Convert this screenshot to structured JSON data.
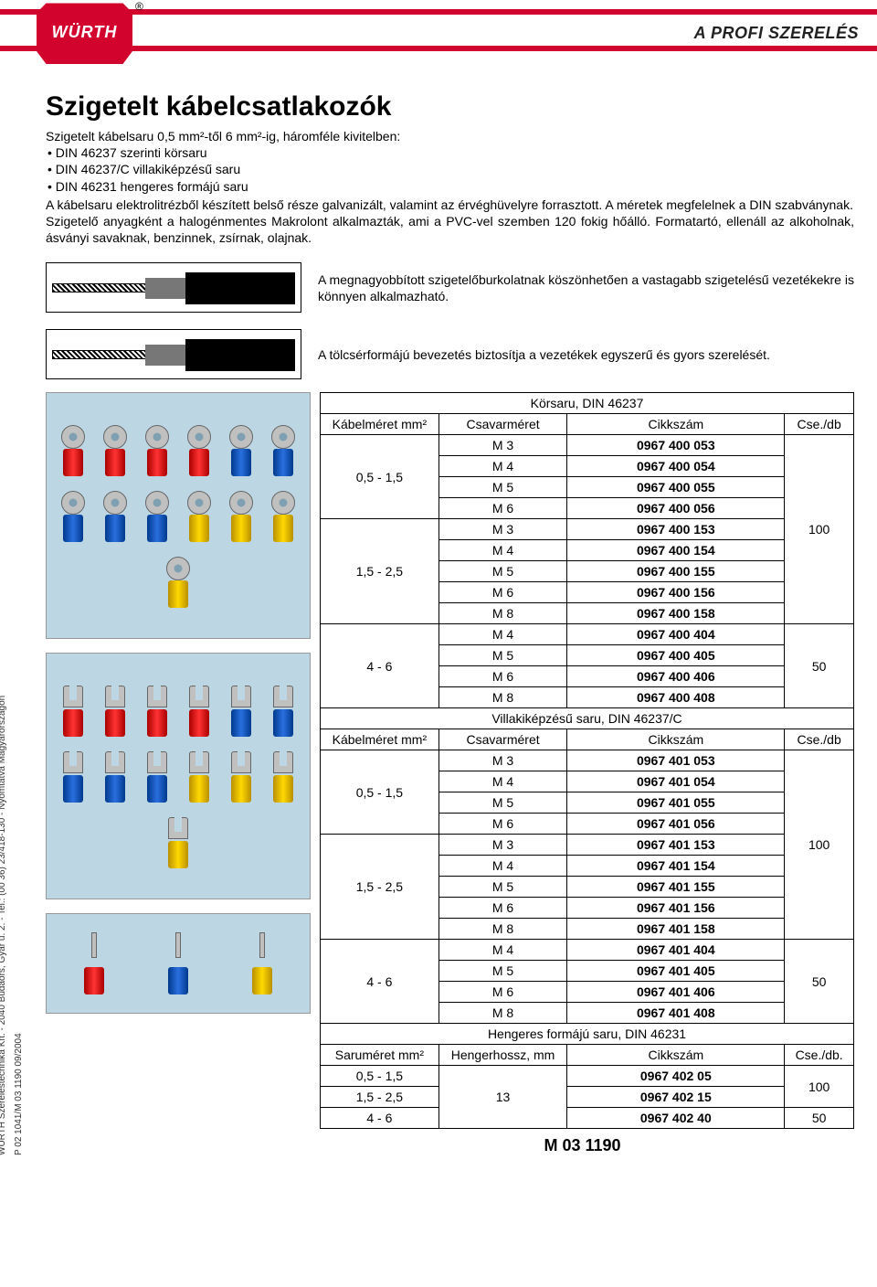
{
  "brand": {
    "logo_text": "WÜRTH",
    "registered": "®",
    "tagline": "A PROFI SZERELÉS"
  },
  "page": {
    "title": "Szigetelt kábelcsatlakozók",
    "subtitle": "Szigetelt kábelsaru 0,5 mm²-től 6 mm²-ig, háromféle kivitelben:",
    "bullets": [
      "DIN 46237 szerinti körsaru",
      "DIN 46237/C villakiképzésű saru",
      "DIN 46231 hengeres formájú saru"
    ],
    "para1": "A kábelsaru elektrolitrézből készített belső része galvanizált, valamint az érvéghüvelyre forrasztott. A méretek megfelelnek a DIN szabványnak.",
    "para2": "Szigetelő anyagként a halogénmentes Makrolont alkalmazták, ami a PVC-vel szemben 120 fokig hőálló. Formatartó, ellenáll az alkoholnak, ásványi savaknak, benzinnek, zsírnak, olajnak.",
    "diag_text1": "A megnagyobbított szigetelőburkolatnak köszönhetően a vastagabb szigetelésű vezetékekre is könnyen alkalmazható.",
    "diag_text2": "A tölcsérformájú bevezetés biztosítja a vezetékek egyszerű és gyors szerelését.",
    "footer_code": "M 03 1190"
  },
  "side": {
    "line1": "WÜRTH Szereléstechnika Kft. - 2040 Budaörs, Gyár u. 2. - Tel.: (00 36) 23/418-130 - Nyomtatva Magyarországon",
    "line2": "P 02 1041/M 03 1190       09/2004"
  },
  "columns": {
    "cable": "Kábelméret mm²",
    "screw": "Csavarméret",
    "article": "Cikkszám",
    "qty": "Cse./db",
    "lug_size": "Saruméret mm²",
    "cyl_len": "Hengerhossz, mm",
    "qty2": "Cse./db."
  },
  "tables": {
    "t1": {
      "title": "Körsaru, DIN 46237",
      "groups": [
        {
          "cable": "0,5 - 1,5",
          "rows": [
            [
              "M 3",
              "0967 400 053"
            ],
            [
              "M 4",
              "0967 400 054"
            ],
            [
              "M 5",
              "0967 400 055"
            ],
            [
              "M 6",
              "0967 400 056"
            ]
          ],
          "qty": "100",
          "qty_span": 9
        },
        {
          "cable": "1,5 - 2,5",
          "rows": [
            [
              "M 3",
              "0967 400 153"
            ],
            [
              "M 4",
              "0967 400 154"
            ],
            [
              "M 5",
              "0967 400 155"
            ],
            [
              "M 6",
              "0967 400 156"
            ],
            [
              "M 8",
              "0967 400 158"
            ]
          ]
        },
        {
          "cable": "4 - 6",
          "rows": [
            [
              "M 4",
              "0967 400 404"
            ],
            [
              "M 5",
              "0967 400 405"
            ],
            [
              "M 6",
              "0967 400 406"
            ],
            [
              "M 8",
              "0967 400 408"
            ]
          ],
          "qty": "50",
          "qty_span": 4
        }
      ]
    },
    "t2": {
      "title": "Villakiképzésű saru, DIN 46237/C",
      "groups": [
        {
          "cable": "0,5 - 1,5",
          "rows": [
            [
              "M 3",
              "0967 401 053"
            ],
            [
              "M 4",
              "0967 401 054"
            ],
            [
              "M 5",
              "0967 401 055"
            ],
            [
              "M 6",
              "0967 401 056"
            ]
          ],
          "qty": "100",
          "qty_span": 9
        },
        {
          "cable": "1,5 - 2,5",
          "rows": [
            [
              "M 3",
              "0967 401 153"
            ],
            [
              "M 4",
              "0967 401 154"
            ],
            [
              "M 5",
              "0967 401 155"
            ],
            [
              "M 6",
              "0967 401 156"
            ],
            [
              "M 8",
              "0967 401 158"
            ]
          ]
        },
        {
          "cable": "4 - 6",
          "rows": [
            [
              "M 4",
              "0967 401 404"
            ],
            [
              "M 5",
              "0967 401 405"
            ],
            [
              "M 6",
              "0967 401 406"
            ],
            [
              "M 8",
              "0967 401 408"
            ]
          ],
          "qty": "50",
          "qty_span": 4
        }
      ]
    },
    "t3": {
      "title": "Hengeres formájú saru, DIN 46231",
      "len": "13",
      "rows": [
        {
          "cable": "0,5 - 1,5",
          "art": "0967 402 05",
          "qty": "100",
          "qty_span": 2
        },
        {
          "cable": "1,5 - 2,5",
          "art": "0967 402 15"
        },
        {
          "cable": "4 - 6",
          "art": "0967 402 40",
          "qty": "50",
          "qty_span": 1
        }
      ]
    }
  },
  "colors": {
    "brand_red": "#d2042d",
    "photo_bg": "#bcd6e3",
    "sleeve_red": "#e02020",
    "sleeve_blue": "#2a5fd0",
    "sleeve_yellow": "#ffd900"
  }
}
